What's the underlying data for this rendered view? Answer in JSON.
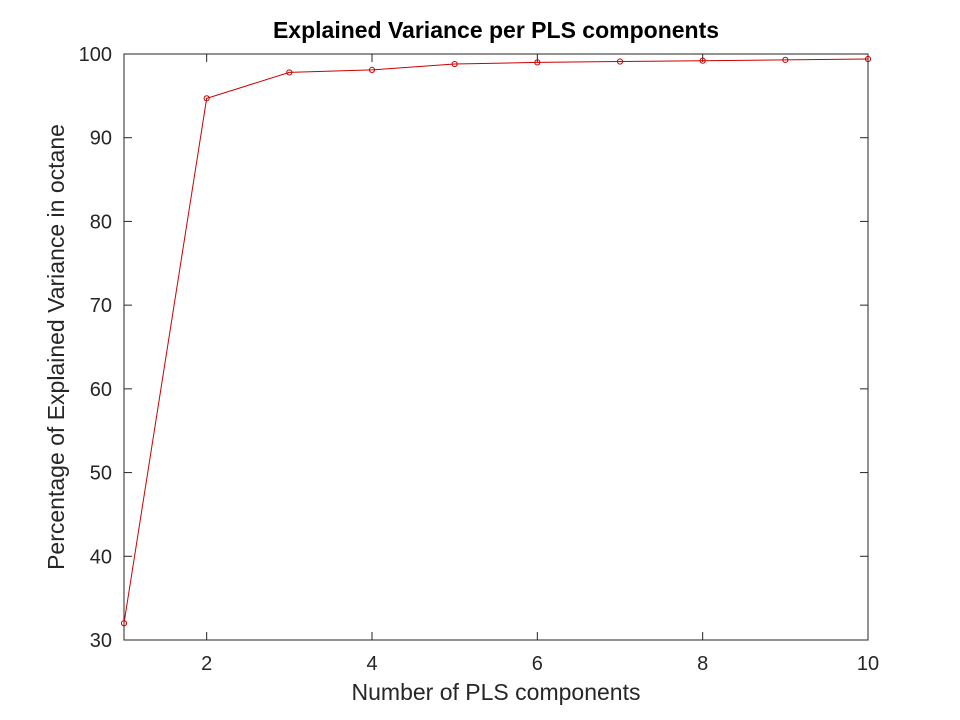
{
  "chart_data": {
    "type": "line",
    "title": "Explained Variance per PLS components",
    "xlabel": "Number of PLS components",
    "ylabel": "Percentage of Explained Variance in octane",
    "xlim": [
      1,
      10
    ],
    "ylim": [
      30,
      100
    ],
    "xticks": [
      2,
      4,
      6,
      8,
      10
    ],
    "yticks": [
      30,
      40,
      50,
      60,
      70,
      80,
      90,
      100
    ],
    "grid": false,
    "series": [
      {
        "color": "#cc0000",
        "marker": "circle",
        "x": [
          1,
          2,
          3,
          4,
          5,
          6,
          7,
          8,
          9,
          10
        ],
        "y": [
          32.0,
          94.7,
          97.8,
          98.1,
          98.8,
          99.0,
          99.1,
          99.2,
          99.3,
          99.4
        ]
      }
    ]
  }
}
